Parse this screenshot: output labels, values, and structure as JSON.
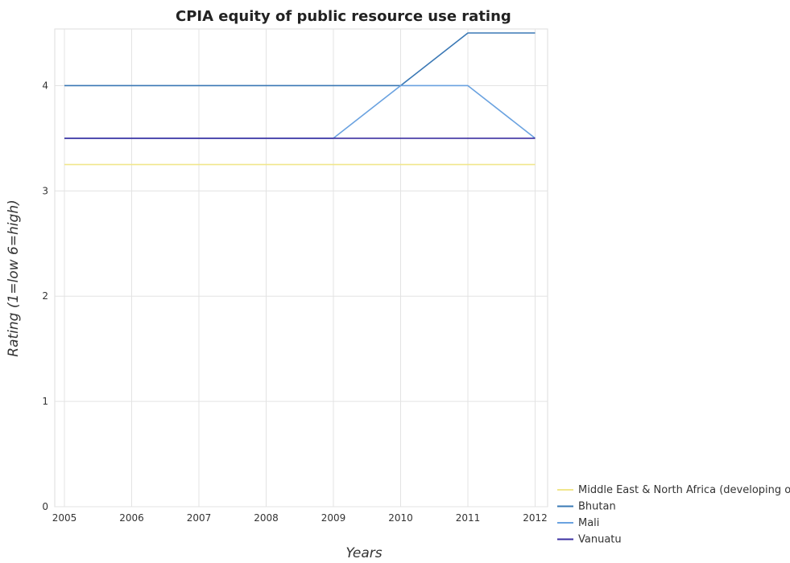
{
  "chart_data": {
    "type": "line",
    "title": "CPIA equity of public resource use rating",
    "xlabel": "Years",
    "ylabel": "Rating (1=low 6=high)",
    "categories": [
      "2005",
      "2006",
      "2007",
      "2008",
      "2009",
      "2010",
      "2011",
      "2012"
    ],
    "ylim": [
      0,
      4.6
    ],
    "yticks": [
      "0",
      "1",
      "2",
      "3",
      "4"
    ],
    "grid": true,
    "legend_position": "bottom-right",
    "series": [
      {
        "name": "Middle East & North Africa (developing only)",
        "color": "#f0e68c",
        "values": [
          3.25,
          3.25,
          3.25,
          3.25,
          3.25,
          3.25,
          3.25,
          3.25
        ]
      },
      {
        "name": "Bhutan",
        "color": "#3a78b5",
        "values": [
          4.0,
          4.0,
          4.0,
          4.0,
          4.0,
          4.0,
          4.5,
          4.5
        ]
      },
      {
        "name": "Mali",
        "color": "#6aa2e0",
        "values": [
          3.5,
          3.5,
          3.5,
          3.5,
          3.5,
          4.0,
          4.0,
          3.5
        ]
      },
      {
        "name": "Vanuatu",
        "color": "#3b2fa0",
        "values": [
          3.5,
          3.5,
          3.5,
          3.5,
          3.5,
          3.5,
          3.5,
          3.5
        ]
      }
    ]
  }
}
